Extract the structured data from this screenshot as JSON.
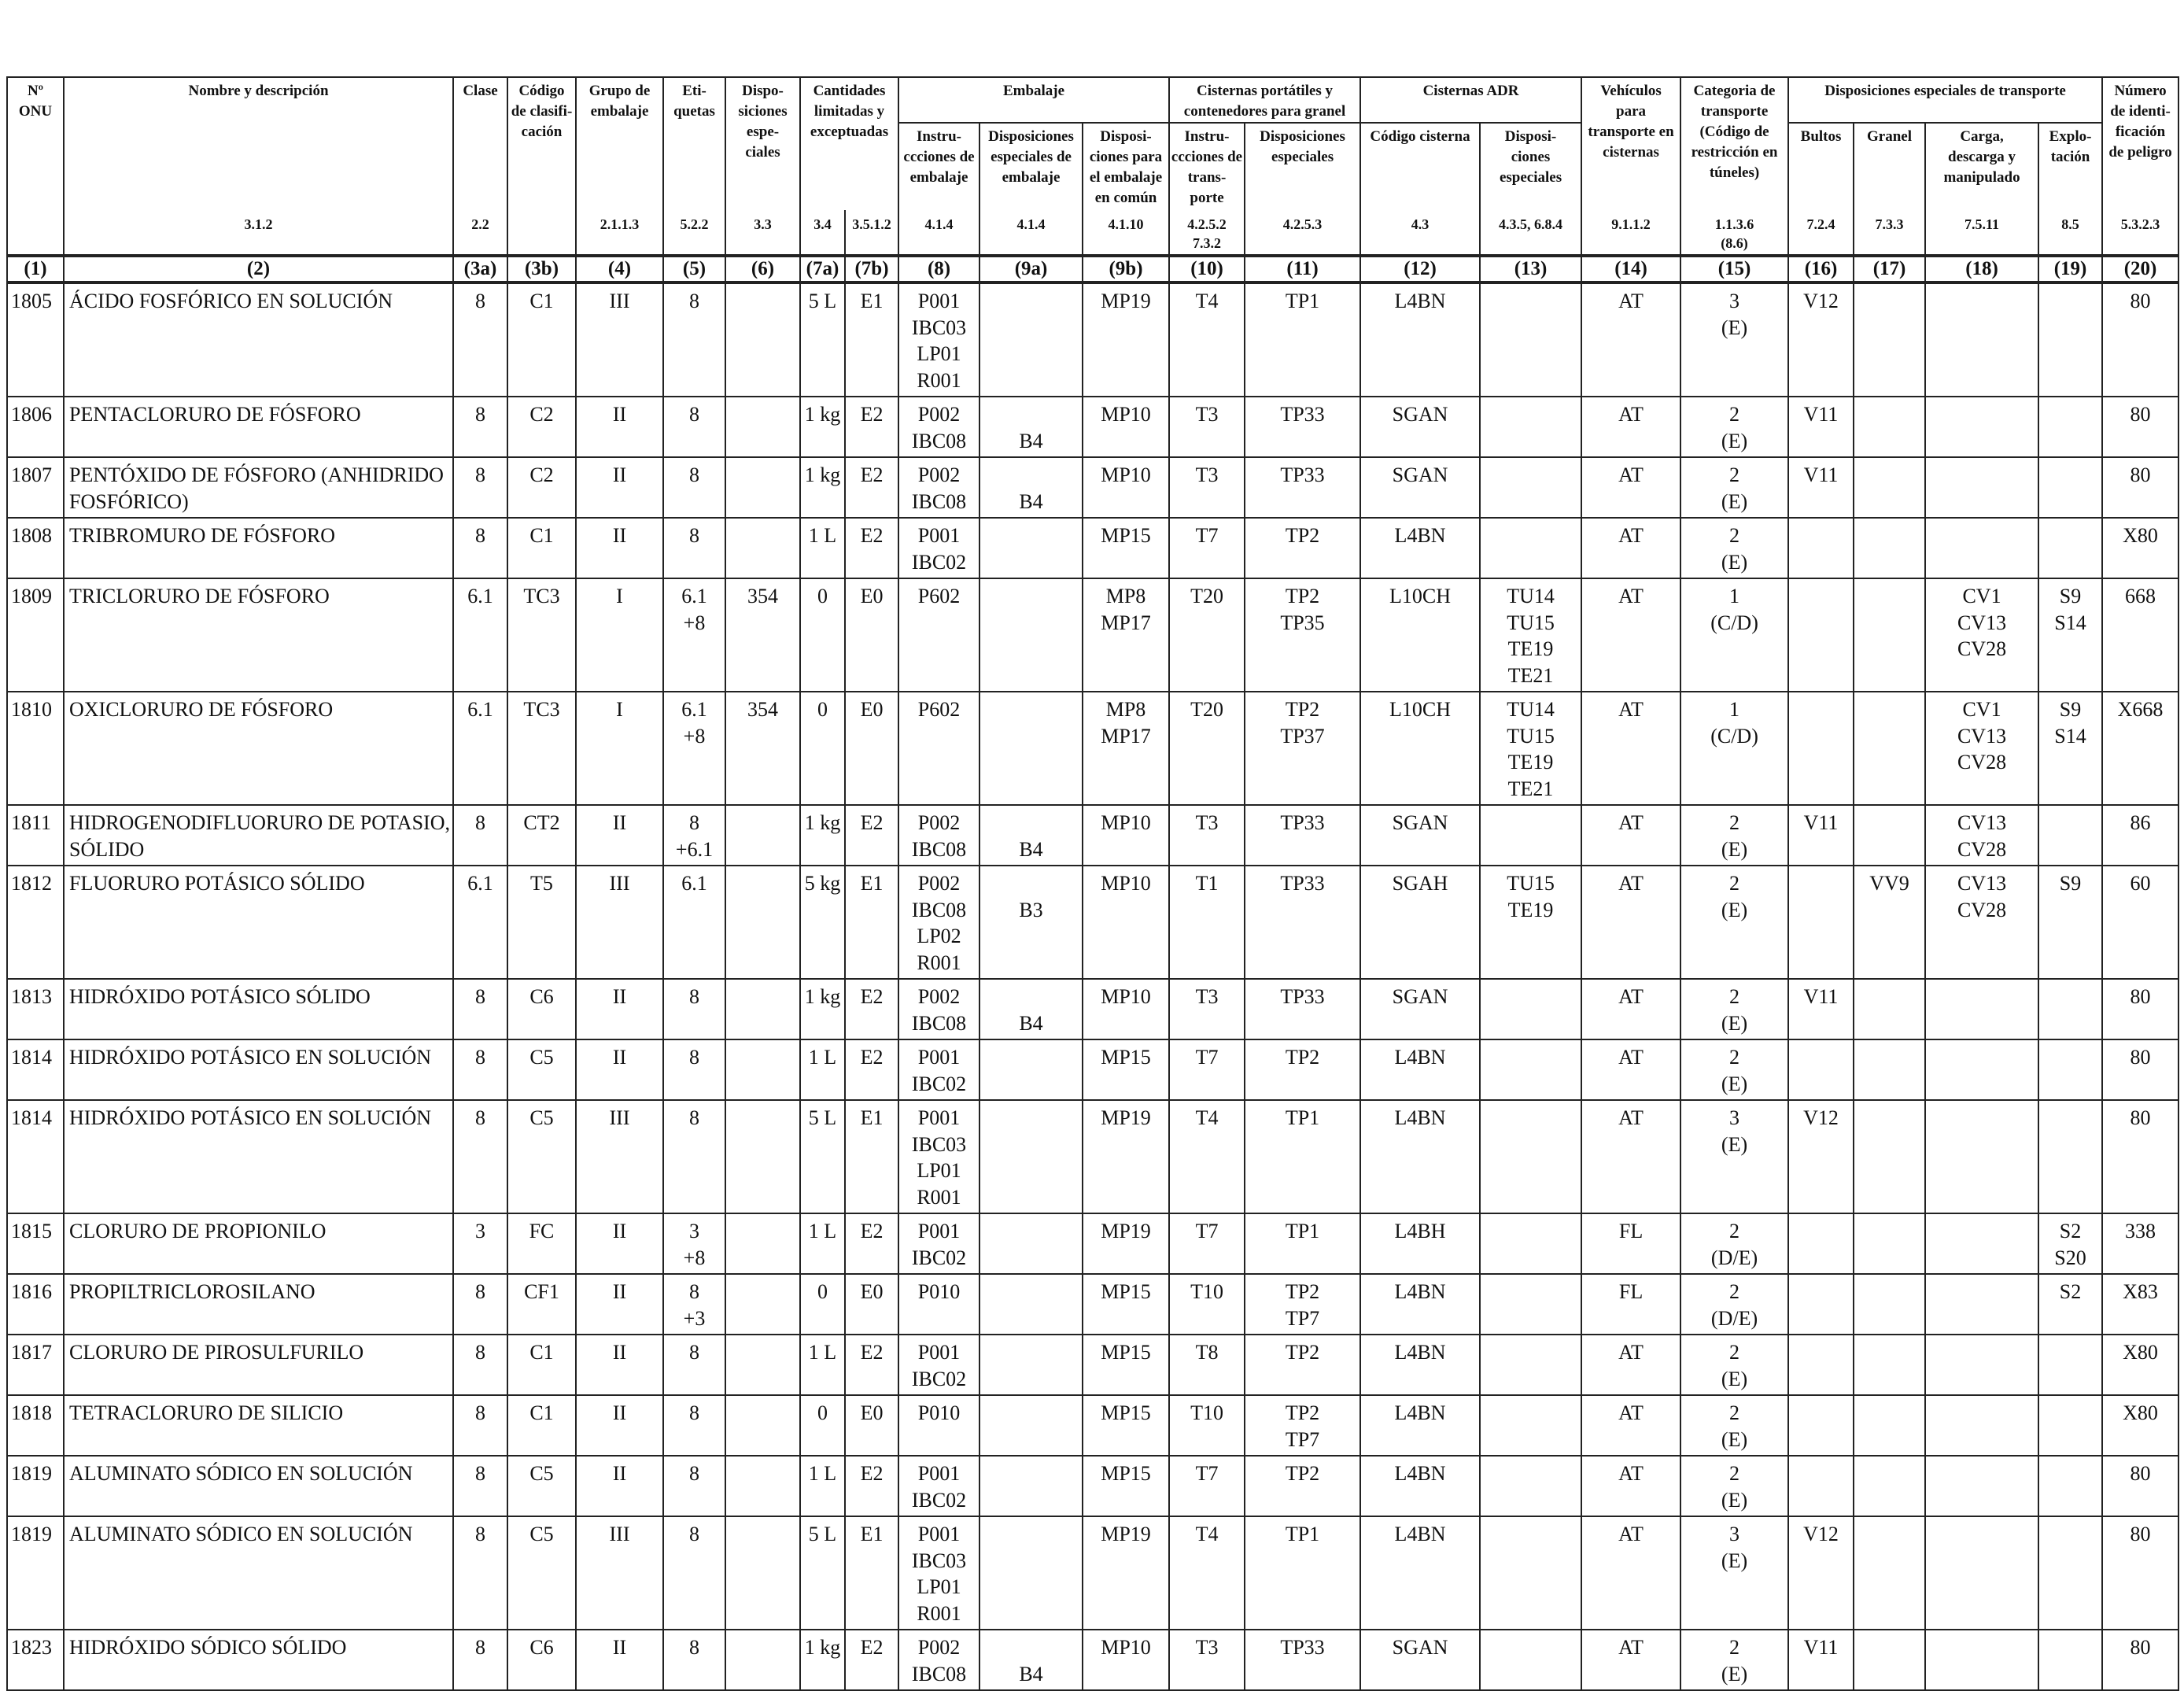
{
  "headers": {
    "un": "Nº\nONU",
    "name": "Nombre y descripción",
    "class": "Clase",
    "code": "Código\nde clasifi-\ncación",
    "pg": "Grupo de\nembalaje",
    "labels": "Eti-\nquetas",
    "sp": "Dispo-\nsiciones\nespe-\nciales",
    "lq": "Cantidades\nlimitadas y\nexceptuadas",
    "packaging": "Embalaje",
    "pack_instr": "Instru-\nccciones de\nembalaje",
    "pack_sp": "Disposiciones\nespeciales de\nembalaje",
    "pack_mixed": "Disposi-\nciones para\nel embalaje\nen común",
    "portable": "Cisternas portátiles y\ncontenedores para granel",
    "portable_instr": "Instru-\nccciones de\ntrans-\nporte",
    "portable_sp": "Disposiciones\nespeciales",
    "adr_tanks": "Cisternas ADR",
    "tank_code": "Código cisterna",
    "tank_sp": "Disposi-\nciones\nespeciales",
    "vehicle": "Vehículos\npara\ntransporte en\ncisternas",
    "category": "Categoria de\ntransporte\n(Código de\nrestricción en\ntúneles)",
    "special": "Disposiciones especiales de transporte",
    "packages": "Bultos",
    "bulk": "Granel",
    "loading": "Carga,\ndescarga y\nmanipulado",
    "operation": "Explo-\ntación",
    "hazard_id": "Número\nde identi-\nficación\nde peligro"
  },
  "refs": [
    "",
    "3.1.2",
    "2.2",
    "",
    "2.1.1.3",
    "5.2.2",
    "3.3",
    "3.4",
    "3.5.1.2",
    "4.1.4",
    "4.1.4",
    "4.1.10",
    "4.2.5.2\n7.3.2",
    "4.2.5.3",
    "4.3",
    "4.3.5, 6.8.4",
    "9.1.1.2",
    "1.1.3.6\n(8.6)",
    "7.2.4",
    "7.3.3",
    "7.5.11",
    "8.5",
    "5.3.2.3"
  ],
  "column_numbers": [
    "(1)",
    "(2)",
    "(3a)",
    "(3b)",
    "(4)",
    "(5)",
    "(6)",
    "(7a)",
    "(7b)",
    "(8)",
    "(9a)",
    "(9b)",
    "(10)",
    "(11)",
    "(12)",
    "(13)",
    "(14)",
    "(15)",
    "(16)",
    "(17)",
    "(18)",
    "(19)",
    "(20)"
  ],
  "rows": [
    {
      "un": "1805",
      "name": "ÁCIDO FOSFÓRICO EN SOLUCIÓN",
      "class": "8",
      "code": "C1",
      "pg": "III",
      "labels": "8",
      "sp": "",
      "lq": "5 L",
      "eq": "E1",
      "pi": "P001\nIBC03\nLP01\nR001",
      "psp": "",
      "mp": "MP19",
      "ti": "T4",
      "tsp": "TP1",
      "tc": "L4BN",
      "tasp": "",
      "veh": "AT",
      "cat": "3\n(E)",
      "bul": "V12",
      "gra": "",
      "car": "",
      "exp": "",
      "hin": "80"
    },
    {
      "un": "1806",
      "name": "PENTACLORURO DE FÓSFORO",
      "class": "8",
      "code": "C2",
      "pg": "II",
      "labels": "8",
      "sp": "",
      "lq": "1 kg",
      "eq": "E2",
      "pi": "P002\nIBC08",
      "psp": "\nB4",
      "mp": "MP10",
      "ti": "T3",
      "tsp": "TP33",
      "tc": "SGAN",
      "tasp": "",
      "veh": "AT",
      "cat": "2\n(E)",
      "bul": "V11",
      "gra": "",
      "car": "",
      "exp": "",
      "hin": "80"
    },
    {
      "un": "1807",
      "name": "PENTÓXIDO DE FÓSFORO (ANHIDRIDO FOSFÓRICO)",
      "class": "8",
      "code": "C2",
      "pg": "II",
      "labels": "8",
      "sp": "",
      "lq": "1 kg",
      "eq": "E2",
      "pi": "P002\nIBC08",
      "psp": "\nB4",
      "mp": "MP10",
      "ti": "T3",
      "tsp": "TP33",
      "tc": "SGAN",
      "tasp": "",
      "veh": "AT",
      "cat": "2\n(E)",
      "bul": "V11",
      "gra": "",
      "car": "",
      "exp": "",
      "hin": "80"
    },
    {
      "un": "1808",
      "name": "TRIBROMURO DE FÓSFORO",
      "class": "8",
      "code": "C1",
      "pg": "II",
      "labels": "8",
      "sp": "",
      "lq": "1 L",
      "eq": "E2",
      "pi": "P001\nIBC02",
      "psp": "",
      "mp": "MP15",
      "ti": "T7",
      "tsp": "TP2",
      "tc": "L4BN",
      "tasp": "",
      "veh": "AT",
      "cat": "2\n(E)",
      "bul": "",
      "gra": "",
      "car": "",
      "exp": "",
      "hin": "X80"
    },
    {
      "un": "1809",
      "name": "TRICLORURO DE FÓSFORO",
      "class": "6.1",
      "code": "TC3",
      "pg": "I",
      "labels": "6.1\n+8",
      "sp": "354",
      "lq": "0",
      "eq": "E0",
      "pi": "P602",
      "psp": "",
      "mp": "MP8\nMP17",
      "ti": "T20",
      "tsp": "TP2\nTP35",
      "tc": "L10CH",
      "tasp": "TU14\nTU15\nTE19\nTE21",
      "veh": "AT",
      "cat": "1\n(C/D)",
      "bul": "",
      "gra": "",
      "car": "CV1\nCV13\nCV28",
      "exp": "S9\nS14",
      "hin": "668"
    },
    {
      "un": "1810",
      "name": "OXICLORURO DE FÓSFORO",
      "class": "6.1",
      "code": "TC3",
      "pg": "I",
      "labels": "6.1\n+8",
      "sp": "354",
      "lq": "0",
      "eq": "E0",
      "pi": "P602",
      "psp": "",
      "mp": "MP8\nMP17",
      "ti": "T20",
      "tsp": "TP2\nTP37",
      "tc": "L10CH",
      "tasp": "TU14\nTU15\nTE19\nTE21",
      "veh": "AT",
      "cat": "1\n(C/D)",
      "bul": "",
      "gra": "",
      "car": "CV1\nCV13\nCV28",
      "exp": "S9\nS14",
      "hin": "X668"
    },
    {
      "un": "1811",
      "name": "HIDROGENODIFLUORURO DE POTASIO, SÓLIDO",
      "class": "8",
      "code": "CT2",
      "pg": "II",
      "labels": "8\n+6.1",
      "sp": "",
      "lq": "1 kg",
      "eq": "E2",
      "pi": "P002\nIBC08",
      "psp": "\nB4",
      "mp": "MP10",
      "ti": "T3",
      "tsp": "TP33",
      "tc": "SGAN",
      "tasp": "",
      "veh": "AT",
      "cat": "2\n(E)",
      "bul": "V11",
      "gra": "",
      "car": "CV13\nCV28",
      "exp": "",
      "hin": "86"
    },
    {
      "un": "1812",
      "name": "FLUORURO POTÁSICO SÓLIDO",
      "class": "6.1",
      "code": "T5",
      "pg": "III",
      "labels": "6.1",
      "sp": "",
      "lq": "5 kg",
      "eq": "E1",
      "pi": "P002\nIBC08\nLP02\nR001",
      "psp": "\nB3",
      "mp": "MP10",
      "ti": "T1",
      "tsp": "TP33",
      "tc": "SGAH",
      "tasp": "TU15\nTE19",
      "veh": "AT",
      "cat": "2\n(E)",
      "bul": "",
      "gra": "VV9",
      "car": "CV13\nCV28",
      "exp": "S9",
      "hin": "60"
    },
    {
      "un": "1813",
      "name": "HIDRÓXIDO POTÁSICO SÓLIDO",
      "class": "8",
      "code": "C6",
      "pg": "II",
      "labels": "8",
      "sp": "",
      "lq": "1 kg",
      "eq": "E2",
      "pi": "P002\nIBC08",
      "psp": "\nB4",
      "mp": "MP10",
      "ti": "T3",
      "tsp": "TP33",
      "tc": "SGAN",
      "tasp": "",
      "veh": "AT",
      "cat": "2\n(E)",
      "bul": "V11",
      "gra": "",
      "car": "",
      "exp": "",
      "hin": "80"
    },
    {
      "un": "1814",
      "name": "HIDRÓXIDO POTÁSICO EN SOLUCIÓN",
      "class": "8",
      "code": "C5",
      "pg": "II",
      "labels": "8",
      "sp": "",
      "lq": "1 L",
      "eq": "E2",
      "pi": "P001\nIBC02",
      "psp": "",
      "mp": "MP15",
      "ti": "T7",
      "tsp": "TP2",
      "tc": "L4BN",
      "tasp": "",
      "veh": "AT",
      "cat": "2\n(E)",
      "bul": "",
      "gra": "",
      "car": "",
      "exp": "",
      "hin": "80"
    },
    {
      "un": "1814",
      "name": "HIDRÓXIDO POTÁSICO EN SOLUCIÓN",
      "class": "8",
      "code": "C5",
      "pg": "III",
      "labels": "8",
      "sp": "",
      "lq": "5 L",
      "eq": "E1",
      "pi": "P001\nIBC03\nLP01\nR001",
      "psp": "",
      "mp": "MP19",
      "ti": "T4",
      "tsp": "TP1",
      "tc": "L4BN",
      "tasp": "",
      "veh": "AT",
      "cat": "3\n(E)",
      "bul": "V12",
      "gra": "",
      "car": "",
      "exp": "",
      "hin": "80"
    },
    {
      "un": "1815",
      "name": "CLORURO DE PROPIONILO",
      "class": "3",
      "code": "FC",
      "pg": "II",
      "labels": "3\n+8",
      "sp": "",
      "lq": "1 L",
      "eq": "E2",
      "pi": "P001\nIBC02",
      "psp": "",
      "mp": "MP19",
      "ti": "T7",
      "tsp": "TP1",
      "tc": "L4BH",
      "tasp": "",
      "veh": "FL",
      "cat": "2\n(D/E)",
      "bul": "",
      "gra": "",
      "car": "",
      "exp": "S2\nS20",
      "hin": "338"
    },
    {
      "un": "1816",
      "name": "PROPILTRICLOROSILANO",
      "class": "8",
      "code": "CF1",
      "pg": "II",
      "labels": "8\n+3",
      "sp": "",
      "lq": "0",
      "eq": "E0",
      "pi": "P010",
      "psp": "",
      "mp": "MP15",
      "ti": "T10",
      "tsp": "TP2\nTP7",
      "tc": "L4BN",
      "tasp": "",
      "veh": "FL",
      "cat": "2\n(D/E)",
      "bul": "",
      "gra": "",
      "car": "",
      "exp": "S2",
      "hin": "X83"
    },
    {
      "un": "1817",
      "name": "CLORURO DE PIROSULFURILO",
      "class": "8",
      "code": "C1",
      "pg": "II",
      "labels": "8",
      "sp": "",
      "lq": "1 L",
      "eq": "E2",
      "pi": "P001\nIBC02",
      "psp": "",
      "mp": "MP15",
      "ti": "T8",
      "tsp": "TP2",
      "tc": "L4BN",
      "tasp": "",
      "veh": "AT",
      "cat": "2\n(E)",
      "bul": "",
      "gra": "",
      "car": "",
      "exp": "",
      "hin": "X80"
    },
    {
      "un": "1818",
      "name": "TETRACLORURO DE SILICIO",
      "class": "8",
      "code": "C1",
      "pg": "II",
      "labels": "8",
      "sp": "",
      "lq": "0",
      "eq": "E0",
      "pi": "P010",
      "psp": "",
      "mp": "MP15",
      "ti": "T10",
      "tsp": "TP2\nTP7",
      "tc": "L4BN",
      "tasp": "",
      "veh": "AT",
      "cat": "2\n(E)",
      "bul": "",
      "gra": "",
      "car": "",
      "exp": "",
      "hin": "X80"
    },
    {
      "un": "1819",
      "name": "ALUMINATO SÓDICO EN SOLUCIÓN",
      "class": "8",
      "code": "C5",
      "pg": "II",
      "labels": "8",
      "sp": "",
      "lq": "1 L",
      "eq": "E2",
      "pi": "P001\nIBC02",
      "psp": "",
      "mp": "MP15",
      "ti": "T7",
      "tsp": "TP2",
      "tc": "L4BN",
      "tasp": "",
      "veh": "AT",
      "cat": "2\n(E)",
      "bul": "",
      "gra": "",
      "car": "",
      "exp": "",
      "hin": "80"
    },
    {
      "un": "1819",
      "name": "ALUMINATO SÓDICO EN SOLUCIÓN",
      "class": "8",
      "code": "C5",
      "pg": "III",
      "labels": "8",
      "sp": "",
      "lq": "5 L",
      "eq": "E1",
      "pi": "P001\nIBC03\nLP01\nR001",
      "psp": "",
      "mp": "MP19",
      "ti": "T4",
      "tsp": "TP1",
      "tc": "L4BN",
      "tasp": "",
      "veh": "AT",
      "cat": "3\n(E)",
      "bul": "V12",
      "gra": "",
      "car": "",
      "exp": "",
      "hin": "80"
    },
    {
      "un": "1823",
      "name": "HIDRÓXIDO SÓDICO SÓLIDO",
      "class": "8",
      "code": "C6",
      "pg": "II",
      "labels": "8",
      "sp": "",
      "lq": "1 kg",
      "eq": "E2",
      "pi": "P002\nIBC08",
      "psp": "\nB4",
      "mp": "MP10",
      "ti": "T3",
      "tsp": "TP33",
      "tc": "SGAN",
      "tasp": "",
      "veh": "AT",
      "cat": "2\n(E)",
      "bul": "V11",
      "gra": "",
      "car": "",
      "exp": "",
      "hin": "80"
    }
  ]
}
